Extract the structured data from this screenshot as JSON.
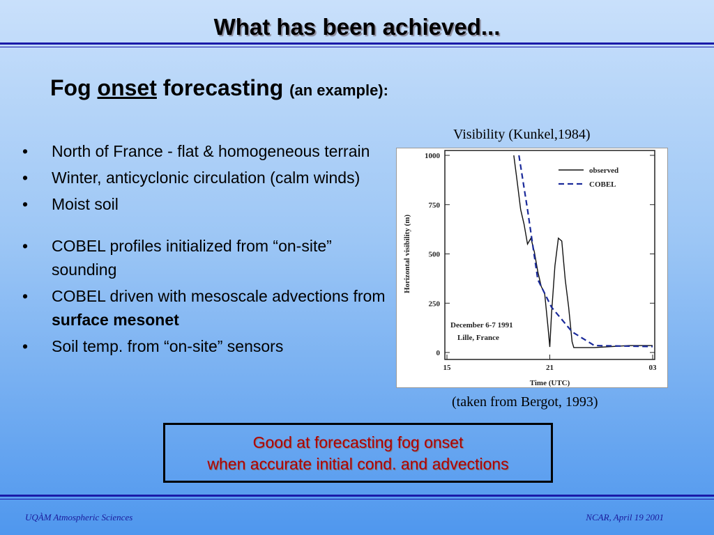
{
  "header": {
    "title": "What has been achieved..."
  },
  "subtitle": {
    "lead": "Fog",
    "underlined": "onset",
    "rest": "forecasting",
    "note": "(an example):"
  },
  "bullets": [
    [
      "North of France - flat & homogeneous terrain"
    ],
    [
      "Winter, anticyclonic circulation (calm winds)"
    ],
    [
      "Moist soil"
    ],
    [
      "COBEL profiles initialized from “on-site” sounding"
    ],
    [
      "COBEL driven with mesoscale advections from ",
      "surface mesonet"
    ],
    [
      "Soil temp. from “on-site” sensors"
    ]
  ],
  "figure": {
    "caption": "Visibility (Kunkel,1984)",
    "source": "(taken from Bergot, 1993)",
    "ylabel": "Horizontal visibility (m)",
    "xlabel": "Time (UTC)",
    "annotation": [
      "December 6-7 1991",
      "Lille, France"
    ],
    "xlim": [
      15,
      27
    ],
    "xticks": [
      15,
      21,
      {
        "value": 27,
        "label": "03"
      }
    ],
    "ylim": [
      0,
      1000
    ],
    "yticks": [
      0,
      250,
      500,
      750,
      1000
    ],
    "series": [
      {
        "name": "observed",
        "color": "#111111",
        "x": [
          18.9,
          19.1,
          19.3,
          19.5,
          19.7,
          19.9,
          20.1,
          20.3,
          20.5,
          20.7,
          20.9,
          21.0,
          21.1,
          21.3,
          21.5,
          21.7,
          21.9,
          22.1,
          22.3,
          22.4,
          23.6,
          25.6,
          27
        ],
        "values": [
          1000,
          865,
          725,
          650,
          550,
          580,
          510,
          410,
          335,
          300,
          125,
          28,
          195,
          440,
          580,
          565,
          370,
          230,
          55,
          25,
          25,
          35,
          35
        ]
      },
      {
        "name": "COBEL",
        "color": "#1a2a9a",
        "x": [
          19.2,
          19.7,
          20.3,
          21.1,
          22.3,
          23.6,
          27
        ],
        "values": [
          1000,
          725,
          370,
          230,
          105,
          35,
          30
        ]
      }
    ]
  },
  "conclusion": [
    "Good at forecasting fog onset",
    "when accurate initial cond. and advections"
  ],
  "footer": {
    "left": "UQÀM Atmospheric Sciences",
    "right": "NCAR, April 19 2001"
  }
}
